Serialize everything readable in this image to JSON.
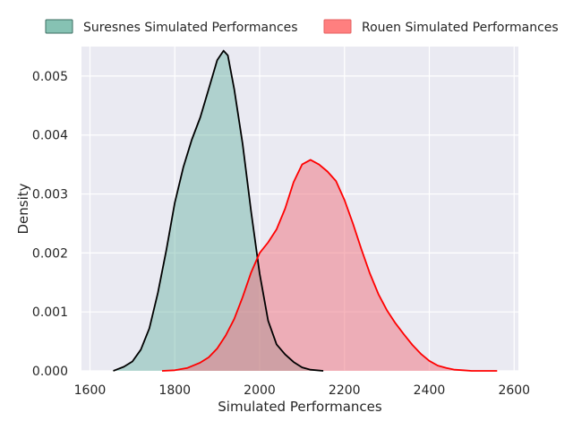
{
  "chart_data": {
    "type": "area",
    "title": "",
    "xlabel": "Simulated Performances",
    "ylabel": "Density",
    "xlim": [
      1580,
      2610
    ],
    "ylim": [
      0,
      0.0055
    ],
    "xticks": [
      1600,
      1800,
      2000,
      2200,
      2400,
      2600
    ],
    "yticks": [
      0.0,
      0.001,
      0.002,
      0.003,
      0.004,
      0.005
    ],
    "xtick_labels": [
      "1600",
      "1800",
      "2000",
      "2200",
      "2400",
      "2600"
    ],
    "ytick_labels": [
      "0.000",
      "0.001",
      "0.002",
      "0.003",
      "0.004",
      "0.005"
    ],
    "grid": true,
    "background": "#eaeaf2",
    "legend": {
      "placement": "top"
    },
    "series": [
      {
        "name": "Suresnes Simulated Performances",
        "line_color": "#000000",
        "fill_color": "#69b3a2",
        "fill_opacity": 0.45,
        "legend_fill": "#86c2b3",
        "legend_edge": "#3c6e62",
        "points": [
          [
            1655,
            0.0
          ],
          [
            1680,
            7e-05
          ],
          [
            1700,
            0.00016
          ],
          [
            1720,
            0.00036
          ],
          [
            1740,
            0.00072
          ],
          [
            1760,
            0.00132
          ],
          [
            1780,
            0.00205
          ],
          [
            1800,
            0.00285
          ],
          [
            1820,
            0.00345
          ],
          [
            1840,
            0.00392
          ],
          [
            1860,
            0.0043
          ],
          [
            1880,
            0.00478
          ],
          [
            1900,
            0.00527
          ],
          [
            1915,
            0.00543
          ],
          [
            1925,
            0.00535
          ],
          [
            1940,
            0.00478
          ],
          [
            1960,
            0.00385
          ],
          [
            1980,
            0.0027
          ],
          [
            2000,
            0.00165
          ],
          [
            2020,
            0.00085
          ],
          [
            2040,
            0.00045
          ],
          [
            2060,
            0.00028
          ],
          [
            2080,
            0.00015
          ],
          [
            2100,
            6e-05
          ],
          [
            2120,
            2e-05
          ],
          [
            2150,
            0.0
          ]
        ]
      },
      {
        "name": "Rouen Simulated Performances",
        "line_color": "#ff0000",
        "fill_color": "#f0707c",
        "fill_opacity": 0.5,
        "legend_fill": "#ff7f7f",
        "legend_edge": "#e46060",
        "points": [
          [
            1770,
            0.0
          ],
          [
            1800,
            1e-05
          ],
          [
            1830,
            5e-05
          ],
          [
            1860,
            0.00014
          ],
          [
            1880,
            0.00023
          ],
          [
            1900,
            0.00038
          ],
          [
            1920,
            0.0006
          ],
          [
            1940,
            0.00088
          ],
          [
            1960,
            0.00125
          ],
          [
            1980,
            0.00167
          ],
          [
            2000,
            0.002
          ],
          [
            2020,
            0.00218
          ],
          [
            2040,
            0.0024
          ],
          [
            2060,
            0.00275
          ],
          [
            2080,
            0.0032
          ],
          [
            2100,
            0.0035
          ],
          [
            2120,
            0.00358
          ],
          [
            2140,
            0.0035
          ],
          [
            2160,
            0.00338
          ],
          [
            2180,
            0.00322
          ],
          [
            2200,
            0.0029
          ],
          [
            2220,
            0.0025
          ],
          [
            2240,
            0.00206
          ],
          [
            2260,
            0.00165
          ],
          [
            2280,
            0.0013
          ],
          [
            2300,
            0.00103
          ],
          [
            2320,
            0.00081
          ],
          [
            2340,
            0.00062
          ],
          [
            2360,
            0.00044
          ],
          [
            2380,
            0.00029
          ],
          [
            2400,
            0.00017
          ],
          [
            2420,
            9e-05
          ],
          [
            2440,
            5e-05
          ],
          [
            2460,
            2e-05
          ],
          [
            2480,
            1e-05
          ],
          [
            2500,
            0.0
          ],
          [
            2560,
            0.0
          ]
        ]
      }
    ]
  }
}
